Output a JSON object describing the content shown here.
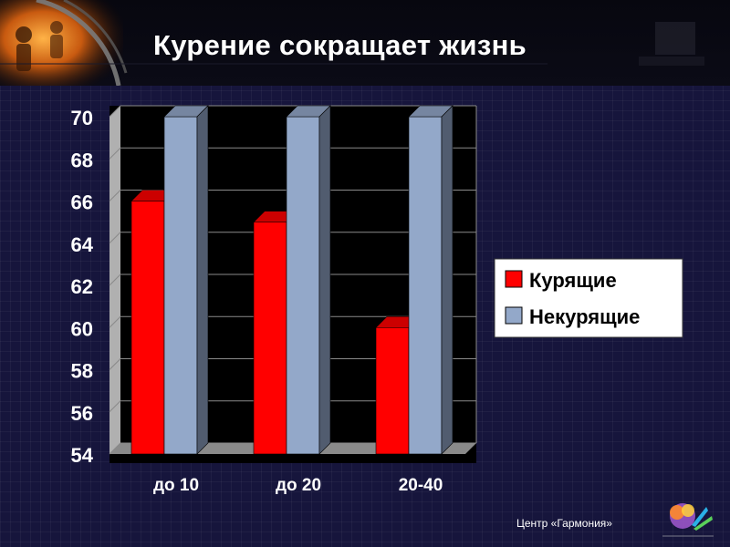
{
  "slide": {
    "title": "Курение сокращает жизнь",
    "footer": "Центр «Гармония»"
  },
  "chart_data": {
    "type": "bar",
    "style": "3d-clustered-column",
    "categories": [
      "до 10",
      "до 20",
      "20-40"
    ],
    "series": [
      {
        "name": "Курящие",
        "values": [
          66,
          65,
          60
        ],
        "color": "#ff0000"
      },
      {
        "name": "Некурящие",
        "values": [
          70,
          70,
          70
        ],
        "color": "#93a8c9"
      }
    ],
    "ylim": [
      54,
      70
    ],
    "yticks": [
      70,
      68,
      66,
      64,
      62,
      60,
      58,
      56,
      54
    ],
    "grid": true,
    "legend_position": "right",
    "colors": {
      "plot_background": "#000000",
      "legend_background": "#ffffff",
      "axis_text": "#ffffff",
      "grid": "#8a8a8a"
    }
  }
}
